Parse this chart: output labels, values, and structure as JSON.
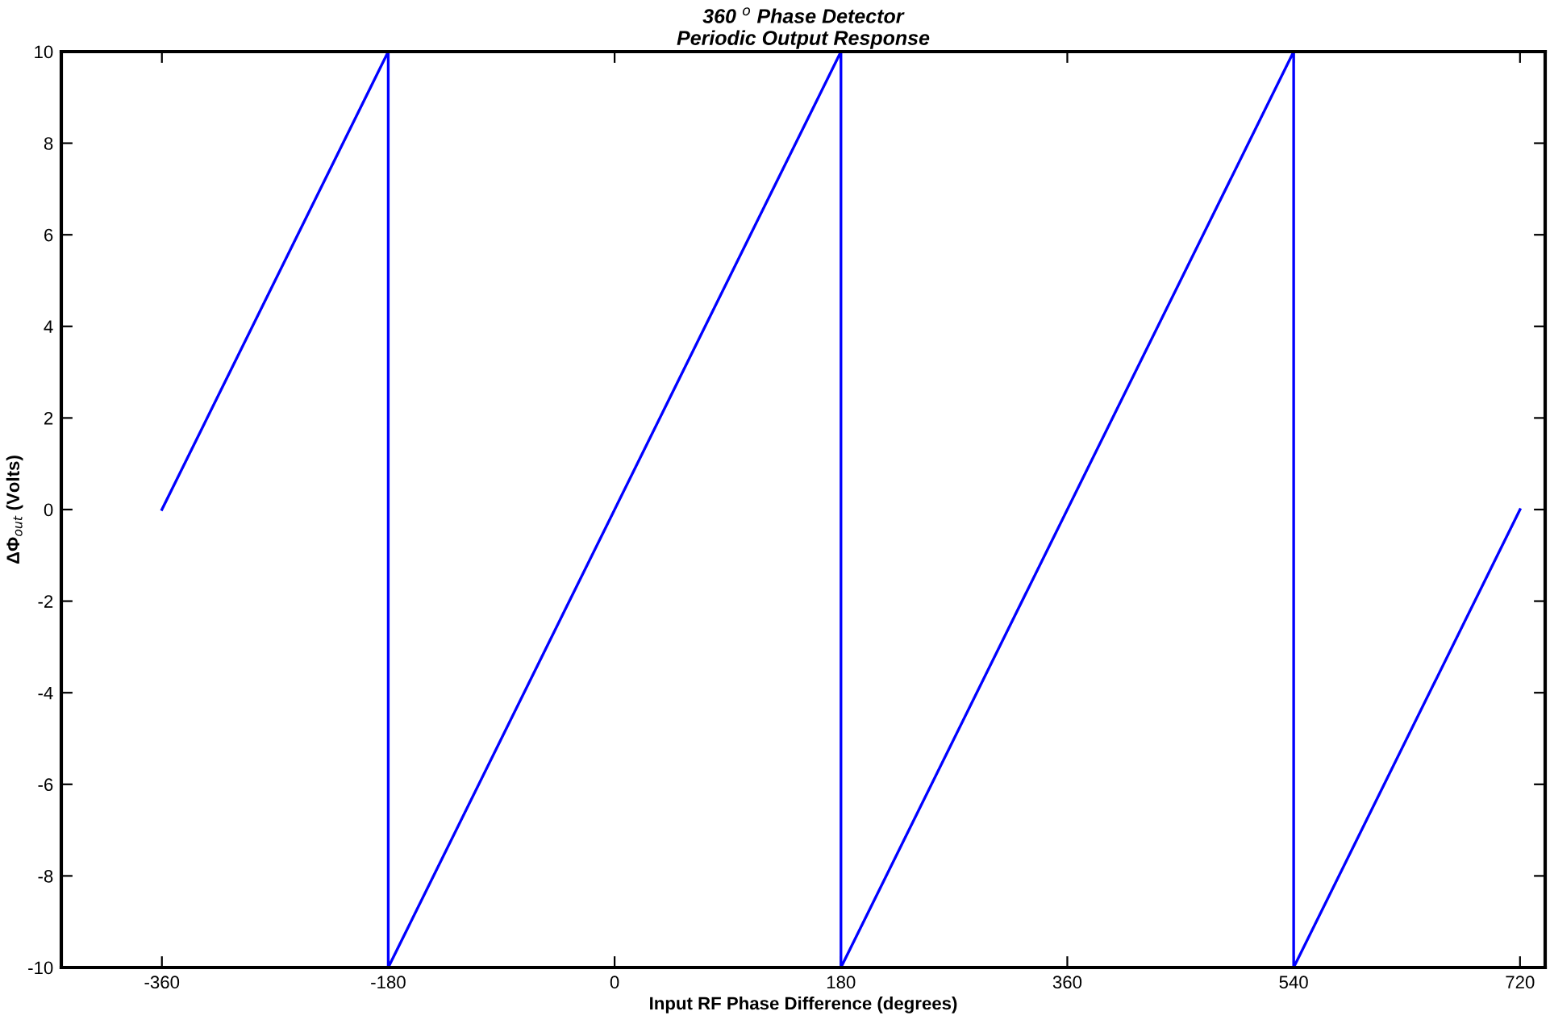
{
  "chart_data": {
    "type": "line",
    "title": "360 $^{o}$ Phase Detector\nPeriodic Output Response",
    "xlabel": "Input RF Phase Difference (degrees)",
    "ylabel": "ΔΦ$_{out}$ (Volts)",
    "xlim": [
      -440,
      740
    ],
    "ylim": [
      -10,
      10
    ],
    "xticks": [
      -360,
      -180,
      0,
      180,
      360,
      540,
      720
    ],
    "yticks": [
      -10,
      -8,
      -6,
      -4,
      -2,
      0,
      2,
      4,
      6,
      8,
      10
    ],
    "grid": false,
    "legend": false,
    "marker": "none",
    "series": [
      {
        "color": "#0000ff",
        "line_style": "solid",
        "x": [
          -360,
          -180,
          -180,
          180,
          180,
          540,
          540,
          720
        ],
        "values": [
          0,
          10,
          -10,
          10,
          -10,
          10,
          -10,
          0
        ]
      }
    ]
  }
}
